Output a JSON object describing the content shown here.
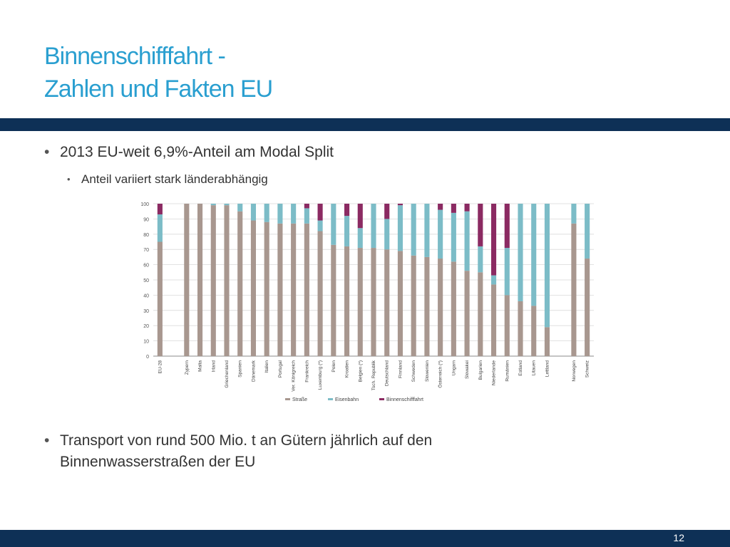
{
  "slide": {
    "title_line1": "Binnenschifffahrt -",
    "title_line2": "Zahlen und Fakten  EU",
    "bullet1": "2013 EU-weit 6,9%-Anteil am Modal Split",
    "bullet1_sub": "Anteil variiert stark länderabhängig",
    "bullet2": "Transport von rund 500 Mio. t an Gütern jährlich auf den Binnenwasserstraßen der EU",
    "page_number": "12",
    "bullet_glyph": "•"
  },
  "colors": {
    "title": "#2a9fd0",
    "bar_dark": "#0e3056",
    "strasse": "#a8978f",
    "eisenbahn": "#7cbcc7",
    "binnenschifffahrt": "#8b2a62"
  },
  "chart_data": {
    "type": "bar",
    "stacked": true,
    "ylim": [
      0,
      100
    ],
    "yticks": [
      0,
      10,
      20,
      30,
      40,
      50,
      60,
      70,
      80,
      90,
      100
    ],
    "grid": true,
    "legend_position": "bottom",
    "categories": [
      "EU-28",
      "Zypern",
      "Malta",
      "Irland",
      "Griechenland",
      "Spanien",
      "Dänemark",
      "Italien",
      "Portugal",
      "Ver. Königreich",
      "Frankreich",
      "Luxemburg (*)",
      "Polen",
      "Kroatien",
      "Belgien (*)",
      "Tsch. Republik",
      "Deutschland",
      "Finnland",
      "Schweden",
      "Slowenien",
      "Österreich (*)",
      "Ungarn",
      "Slowakei",
      "Bulgarien",
      "Niederlande",
      "Rumänien",
      "Estland",
      "Litauen",
      "Lettland",
      "Norwegen",
      "Schweiz"
    ],
    "gap_after": [
      0,
      28
    ],
    "series": [
      {
        "name": "Straße",
        "values": [
          75,
          100,
          100,
          99,
          99,
          95,
          89,
          88,
          87,
          87,
          87,
          82,
          73,
          72,
          71,
          71,
          70,
          69,
          66,
          65,
          64,
          62,
          56,
          55,
          47,
          40,
          36,
          33,
          19,
          87,
          64
        ]
      },
      {
        "name": "Eisenbahn",
        "values": [
          18,
          0,
          0,
          1,
          1,
          5,
          11,
          12,
          13,
          13,
          10,
          7,
          27,
          20,
          13,
          29,
          20,
          30,
          34,
          35,
          32,
          32,
          39,
          17,
          6,
          31,
          64,
          67,
          81,
          13,
          36
        ]
      },
      {
        "name": "Binnenschifffahrt",
        "values": [
          7,
          0,
          0,
          0,
          0,
          0,
          0,
          0,
          0,
          0,
          3,
          11,
          0,
          8,
          16,
          0,
          10,
          1,
          0,
          0,
          4,
          6,
          5,
          28,
          47,
          29,
          0,
          0,
          0,
          0,
          0
        ]
      }
    ]
  }
}
